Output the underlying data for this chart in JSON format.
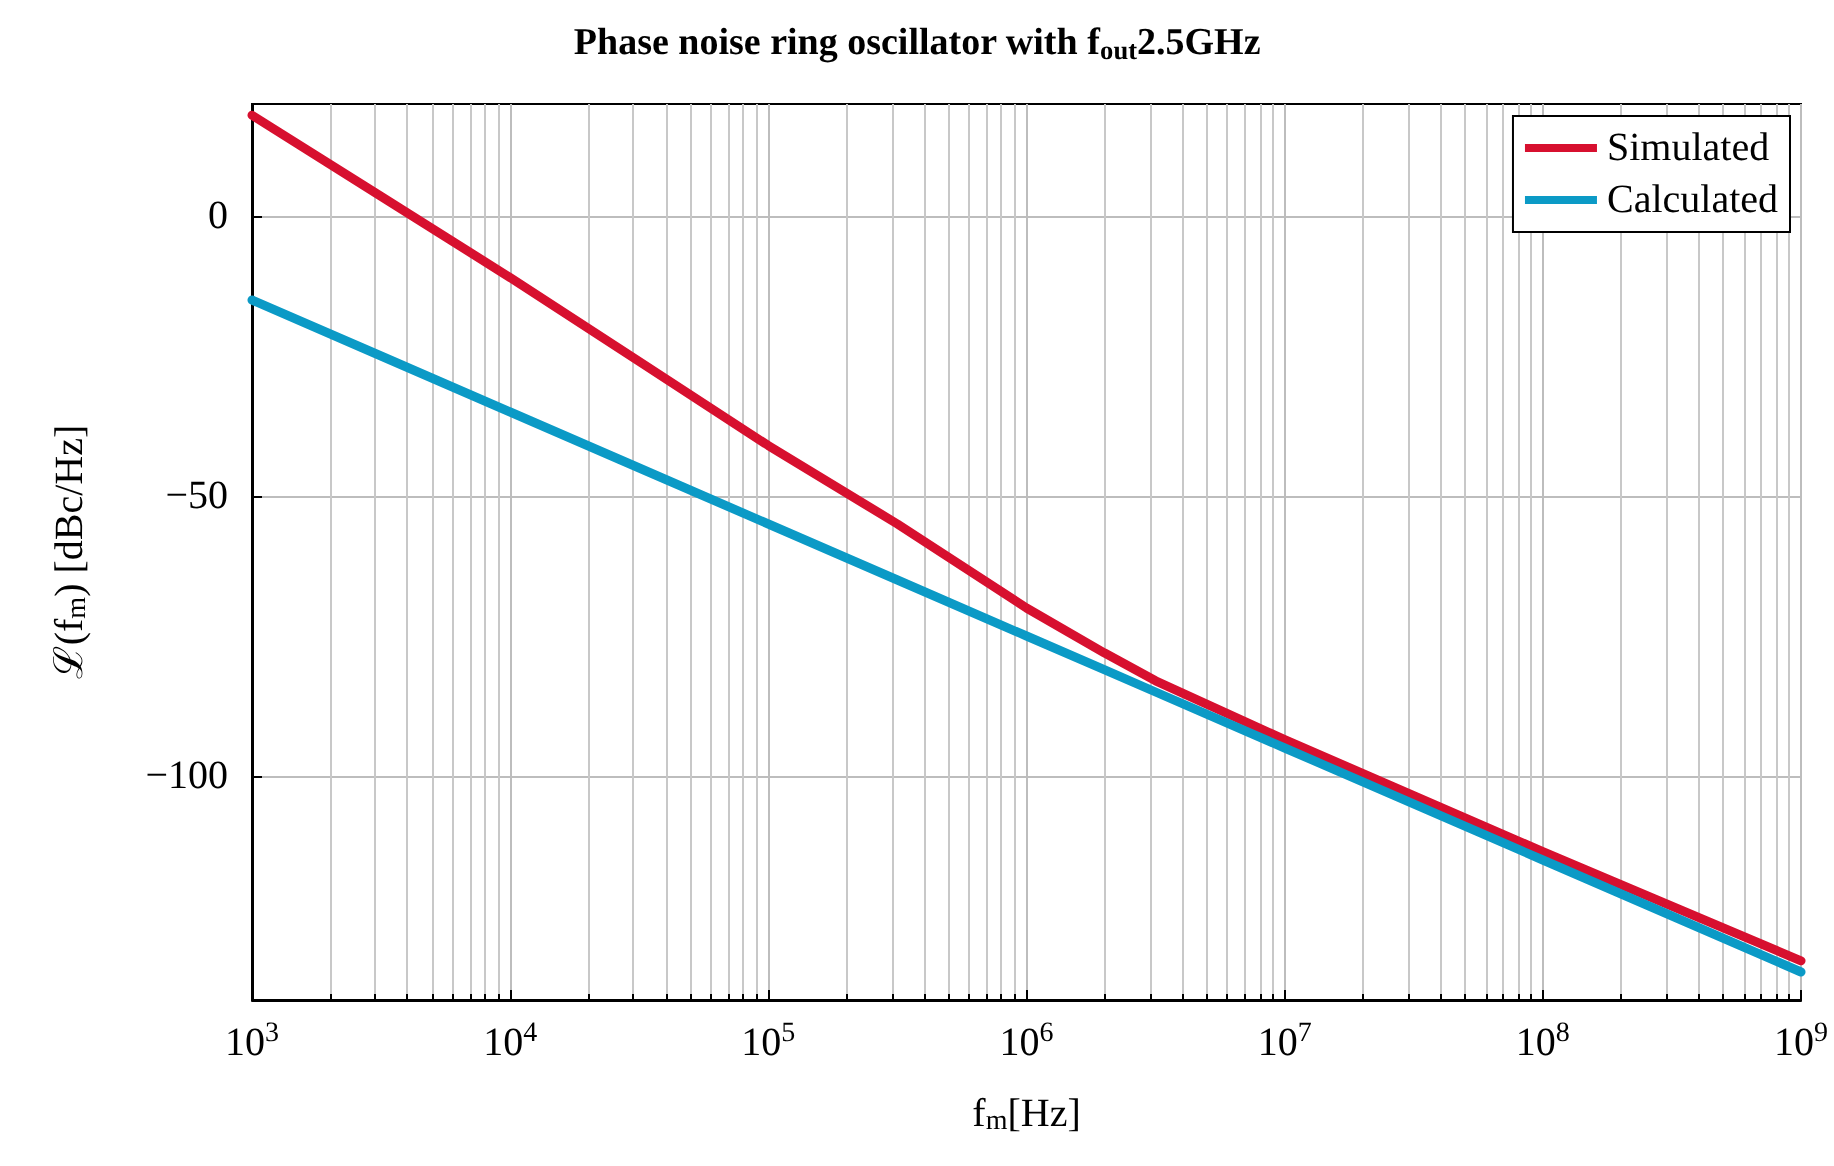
{
  "chart_data": {
    "type": "line",
    "title": "Phase noise ring oscillator with f$_{out}$2.5GHz",
    "xlabel": "f$_{m}$[Hz]",
    "ylabel": "ℒ(f$_{m}$) [dBc/Hz]",
    "log": "x",
    "xlim": [
      1000,
      1000000000
    ],
    "xticks": [
      {
        "value": 1000,
        "label": "10$^{3}$"
      },
      {
        "value": 10000,
        "label": "10$^{4}$"
      },
      {
        "value": 100000,
        "label": "10$^{5}$"
      },
      {
        "value": 1000000,
        "label": "10$^{6}$"
      },
      {
        "value": 10000000,
        "label": "10$^{7}$"
      },
      {
        "value": 100000000,
        "label": "10$^{8}$"
      },
      {
        "value": 1000000000,
        "label": "10$^{9}$"
      }
    ],
    "ylim": [
      -140,
      20
    ],
    "yticks": [
      {
        "value": -100,
        "label": "−100"
      },
      {
        "value": -50,
        "label": "−50"
      },
      0
    ],
    "x": [
      1000,
      3162,
      10000,
      31623,
      100000,
      316228,
      1000000,
      2000000,
      3162278,
      10000000,
      100000000,
      1000000000
    ],
    "series": [
      {
        "name": "Simulated",
        "color": "#d7102f",
        "values": [
          18,
          3.5,
          -11,
          -26,
          -41,
          -55,
          -70,
          -78,
          -83,
          -93.5,
          -113.5,
          -133
        ]
      },
      {
        "name": "Calculated",
        "color": "#0b9ac6",
        "values": [
          -15,
          -25,
          -35,
          -45,
          -55,
          -65,
          -75,
          -81,
          -85,
          -95,
          -115,
          -135
        ]
      }
    ],
    "grid": true,
    "legend": "top right",
    "line_style": "solid",
    "marker": "none"
  }
}
